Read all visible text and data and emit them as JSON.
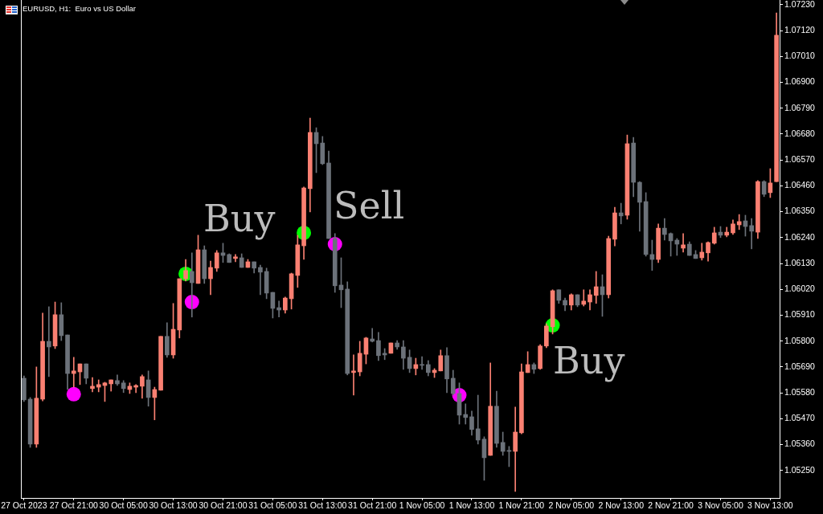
{
  "chart_data": {
    "type": "candlestick",
    "title": "EURUSD, H1:  Euro vs US Dollar",
    "categories": [
      "27 Oct 2023",
      null,
      null,
      null,
      null,
      null,
      null,
      null,
      "27 Oct 21:00",
      null,
      null,
      null,
      null,
      null,
      null,
      null,
      "30 Oct 05:00",
      null,
      null,
      null,
      null,
      null,
      null,
      null,
      "30 Oct 13:00",
      null,
      null,
      null,
      null,
      null,
      null,
      null,
      "30 Oct 21:00",
      null,
      null,
      null,
      null,
      null,
      null,
      null,
      "31 Oct 05:00",
      null,
      null,
      null,
      null,
      null,
      null,
      null,
      "31 Oct 13:00",
      null,
      null,
      null,
      null,
      null,
      null,
      null,
      "31 Oct 21:00",
      null,
      null,
      null,
      null,
      null,
      null,
      null,
      "1 Nov 05:00",
      null,
      null,
      null,
      null,
      null,
      null,
      null,
      "1 Nov 13:00",
      null,
      null,
      null,
      null,
      null,
      null,
      null,
      "1 Nov 21:00",
      null,
      null,
      null,
      null,
      null,
      null,
      null,
      "2 Nov 05:00",
      null,
      null,
      null,
      null,
      null,
      null,
      null,
      "2 Nov 13:00",
      null,
      null,
      null,
      null,
      null,
      null,
      null,
      "2 Nov 21:00",
      null,
      null,
      null,
      null,
      null,
      null,
      null,
      "3 Nov 05:00",
      null,
      null,
      null,
      null,
      null,
      null,
      null,
      "3 Nov 13:00",
      null
    ],
    "ohlc": [
      [
        1.05642,
        1.05652,
        1.05543,
        1.0555
      ],
      [
        1.05553,
        1.0556,
        1.05348,
        1.05362
      ],
      [
        1.05362,
        1.0569,
        1.05348,
        1.05557
      ],
      [
        1.05553,
        1.05919,
        1.05546,
        1.05799
      ],
      [
        1.05799,
        1.05946,
        1.05649,
        1.05775
      ],
      [
        1.05779,
        1.05966,
        1.05768,
        1.05912
      ],
      [
        1.05912,
        1.05963,
        1.05802,
        1.05823
      ],
      [
        1.05826,
        1.05826,
        1.05594,
        1.05662
      ],
      [
        1.05662,
        1.05731,
        1.05604,
        1.05673
      ],
      [
        1.05669,
        1.05703,
        1.05615,
        1.05703
      ],
      [
        1.05703,
        1.05703,
        1.05618,
        1.05642
      ],
      [
        1.05598,
        1.05645,
        1.05584,
        1.05608
      ],
      [
        1.05604,
        1.05635,
        1.05584,
        1.05615
      ],
      [
        1.05611,
        1.05625,
        1.05543,
        1.05622
      ],
      [
        1.05618,
        1.05635,
        1.05587,
        1.05635
      ],
      [
        1.05632,
        1.05656,
        1.05611,
        1.05618
      ],
      [
        1.05622,
        1.05632,
        1.05581,
        1.05598
      ],
      [
        1.05594,
        1.05622,
        1.05577,
        1.05608
      ],
      [
        1.05604,
        1.05615,
        1.05581,
        1.05611
      ],
      [
        1.05608,
        1.05656,
        1.05557,
        1.05649
      ],
      [
        1.05635,
        1.05673,
        1.05523,
        1.0556
      ],
      [
        1.0556,
        1.05604,
        1.05465,
        1.05594
      ],
      [
        1.05591,
        1.0582,
        1.05591,
        1.0582
      ],
      [
        1.0582,
        1.05878,
        1.05731,
        1.05741
      ],
      [
        1.05741,
        1.0596,
        1.05727,
        1.0585
      ],
      [
        1.05847,
        1.06065,
        1.05813,
        1.06065
      ],
      [
        1.06065,
        1.06147,
        1.06055,
        1.061
      ],
      [
        1.06096,
        1.06175,
        1.05902,
        1.06048
      ],
      [
        1.06045,
        1.0625,
        1.06045,
        1.06188
      ],
      [
        1.06188,
        1.06205,
        1.06045,
        1.06065
      ],
      [
        1.06065,
        1.0614,
        1.05997,
        1.06113
      ],
      [
        1.0611,
        1.06185,
        1.06096,
        1.06175
      ],
      [
        1.06175,
        1.06216,
        1.06134,
        1.06164
      ],
      [
        1.06168,
        1.06171,
        1.06134,
        1.06134
      ],
      [
        1.06151,
        1.06168,
        1.06137,
        1.06158
      ],
      [
        1.06154,
        1.06171,
        1.06113,
        1.06113
      ],
      [
        1.06113,
        1.06147,
        1.06113,
        1.06137
      ],
      [
        1.06137,
        1.06137,
        1.06089,
        1.0611
      ],
      [
        1.06113,
        1.06123,
        1.05997,
        1.06093
      ],
      [
        1.06096,
        1.0611,
        1.0598,
        1.06004
      ],
      [
        1.06007,
        1.06007,
        1.05898,
        1.05939
      ],
      [
        1.05942,
        1.0597,
        1.05902,
        1.05932
      ],
      [
        1.05932,
        1.05987,
        1.05919,
        1.05983
      ],
      [
        1.0598,
        1.06089,
        1.05936,
        1.06086
      ],
      [
        1.06079,
        1.0625,
        1.06028,
        1.06209
      ],
      [
        1.06205,
        1.06455,
        1.06147,
        1.06451
      ],
      [
        1.06448,
        1.06748,
        1.06349,
        1.06687
      ],
      [
        1.06687,
        1.06707,
        1.06516,
        1.06639
      ],
      [
        1.06642,
        1.0667,
        1.0655,
        1.06554
      ],
      [
        1.06557,
        1.06608,
        1.06236,
        1.06236
      ],
      [
        1.06236,
        1.06257,
        1.06007,
        1.06035
      ],
      [
        1.06038,
        1.06154,
        1.05942,
        1.06018
      ],
      [
        1.06021,
        1.06052,
        1.05656,
        1.05662
      ],
      [
        1.05666,
        1.05741,
        1.0557,
        1.05673
      ],
      [
        1.05669,
        1.05799,
        1.05652,
        1.05748
      ],
      [
        1.05744,
        1.05816,
        1.05703,
        1.05813
      ],
      [
        1.05809,
        1.05854,
        1.05796,
        1.05799
      ],
      [
        1.05802,
        1.05837,
        1.05717,
        1.05738
      ],
      [
        1.05748,
        1.05768,
        1.05721,
        1.05741
      ],
      [
        1.05748,
        1.05792,
        1.05748,
        1.05792
      ],
      [
        1.05792,
        1.05802,
        1.05765,
        1.05775
      ],
      [
        1.05775,
        1.05802,
        1.0568,
        1.05727
      ],
      [
        1.05731,
        1.05762,
        1.05666,
        1.05683
      ],
      [
        1.05683,
        1.05727,
        1.05656,
        1.057
      ],
      [
        1.057,
        1.05734,
        1.0568,
        1.05697
      ],
      [
        1.057,
        1.05717,
        1.05652,
        1.05666
      ],
      [
        1.05666,
        1.05683,
        1.05645,
        1.05676
      ],
      [
        1.05673,
        1.05762,
        1.05673,
        1.05738
      ],
      [
        1.05738,
        1.05772,
        1.05581,
        1.05639
      ],
      [
        1.05642,
        1.05676,
        1.0557,
        1.05577
      ],
      [
        1.05577,
        1.05622,
        1.05447,
        1.05485
      ],
      [
        1.05488,
        1.05533,
        1.05447,
        1.05475
      ],
      [
        1.05478,
        1.05502,
        1.054,
        1.05424
      ],
      [
        1.05427,
        1.0557,
        1.05362,
        1.05379
      ],
      [
        1.05383,
        1.05393,
        1.05208,
        1.05304
      ],
      [
        1.05314,
        1.05707,
        1.05314,
        1.05523
      ],
      [
        1.05523,
        1.05587,
        1.05348,
        1.05365
      ],
      [
        1.05369,
        1.05413,
        1.05314,
        1.05331
      ],
      [
        1.05335,
        1.05352,
        1.05266,
        1.05331
      ],
      [
        1.05331,
        1.05519,
        1.05161,
        1.05413
      ],
      [
        1.0541,
        1.05703,
        1.05406,
        1.05669
      ],
      [
        1.05666,
        1.05755,
        1.05666,
        1.057
      ],
      [
        1.057,
        1.05707,
        1.05662,
        1.0568
      ],
      [
        1.05683,
        1.05785,
        1.0568,
        1.05779
      ],
      [
        1.05779,
        1.05874,
        1.05772,
        1.05864
      ],
      [
        1.05861,
        1.06018,
        1.0583,
        1.06014
      ],
      [
        1.06018,
        1.06018,
        1.0596,
        1.05973
      ],
      [
        1.05973,
        1.05983,
        1.05929,
        1.05953
      ],
      [
        1.05953,
        1.06001,
        1.05932,
        1.05997
      ],
      [
        1.05997,
        1.05997,
        1.05946,
        1.05953
      ],
      [
        1.05956,
        1.06018,
        1.05949,
        1.0597
      ],
      [
        1.05966,
        1.06018,
        1.05932,
        1.05997
      ],
      [
        1.05994,
        1.06096,
        1.0596,
        1.06031
      ],
      [
        1.06031,
        1.06082,
        1.05905,
        1.05997
      ],
      [
        1.05997,
        1.06246,
        1.05983,
        1.06236
      ],
      [
        1.06233,
        1.06369,
        1.06205,
        1.06345
      ],
      [
        1.06345,
        1.06386,
        1.06298,
        1.06332
      ],
      [
        1.06335,
        1.06676,
        1.06318,
        1.06639
      ],
      [
        1.06642,
        1.06666,
        1.06414,
        1.06475
      ],
      [
        1.06475,
        1.06478,
        1.06267,
        1.0639
      ],
      [
        1.06393,
        1.06431,
        1.06161,
        1.06168
      ],
      [
        1.06168,
        1.06229,
        1.061,
        1.06147
      ],
      [
        1.06147,
        1.06298,
        1.06134,
        1.0628
      ],
      [
        1.0628,
        1.06321,
        1.06229,
        1.06253
      ],
      [
        1.06257,
        1.0626,
        1.06161,
        1.06226
      ],
      [
        1.06229,
        1.06236,
        1.06164,
        1.06212
      ],
      [
        1.06195,
        1.06257,
        1.06178,
        1.06209
      ],
      [
        1.06212,
        1.06222,
        1.06164,
        1.06164
      ],
      [
        1.06168,
        1.06185,
        1.06151,
        1.06151
      ],
      [
        1.06154,
        1.06216,
        1.06144,
        1.06178
      ],
      [
        1.06175,
        1.06222,
        1.0614,
        1.06219
      ],
      [
        1.06216,
        1.06284,
        1.06212,
        1.0626
      ],
      [
        1.06263,
        1.06287,
        1.0624,
        1.0625
      ],
      [
        1.0625,
        1.06284,
        1.06243,
        1.06263
      ],
      [
        1.0626,
        1.06315,
        1.06253,
        1.06298
      ],
      [
        1.06294,
        1.06338,
        1.06274,
        1.06308
      ],
      [
        1.06311,
        1.06335,
        1.06246,
        1.06287
      ],
      [
        1.06291,
        1.06321,
        1.06192,
        1.06267
      ],
      [
        1.06263,
        1.06482,
        1.06236,
        1.06478
      ],
      [
        1.06478,
        1.06482,
        1.06414,
        1.06424
      ],
      [
        1.06431,
        1.06533,
        1.0641,
        1.06472
      ],
      [
        1.06478,
        1.07195,
        1.06478,
        1.071
      ]
    ],
    "colors": [
      "#6c727a",
      "#6c727a",
      "#fa8072",
      "#fa8072",
      "#6c727a",
      "#fa8072",
      "#6c727a",
      "#6c727a",
      "#fa8072",
      "#fa8072",
      "#6c727a",
      "#fa8072",
      "#fa8072",
      "#fa8072",
      "#fa8072",
      "#6c727a",
      "#6c727a",
      "#fa8072",
      "#fa8072",
      "#fa8072",
      "#6c727a",
      "#fa8072",
      "#fa8072",
      "#6c727a",
      "#fa8072",
      "#fa8072",
      "#fa8072",
      "#6c727a",
      "#fa8072",
      "#6c727a",
      "#fa8072",
      "#fa8072",
      "#6c727a",
      "#6c727a",
      "#fa8072",
      "#6c727a",
      "#fa8072",
      "#6c727a",
      "#6c727a",
      "#6c727a",
      "#6c727a",
      "#6c727a",
      "#fa8072",
      "#fa8072",
      "#fa8072",
      "#fa8072",
      "#fa8072",
      "#6c727a",
      "#6c727a",
      "#6c727a",
      "#6c727a",
      "#6c727a",
      "#6c727a",
      "#fa8072",
      "#fa8072",
      "#fa8072",
      "#6c727a",
      "#6c727a",
      "#6c727a",
      "#fa8072",
      "#6c727a",
      "#6c727a",
      "#6c727a",
      "#fa8072",
      "#6c727a",
      "#6c727a",
      "#fa8072",
      "#fa8072",
      "#6c727a",
      "#6c727a",
      "#6c727a",
      "#6c727a",
      "#6c727a",
      "#6c727a",
      "#6c727a",
      "#fa8072",
      "#6c727a",
      "#6c727a",
      "#6c727a",
      "#fa8072",
      "#fa8072",
      "#fa8072",
      "#6c727a",
      "#fa8072",
      "#fa8072",
      "#fa8072",
      "#6c727a",
      "#6c727a",
      "#fa8072",
      "#6c727a",
      "#fa8072",
      "#fa8072",
      "#fa8072",
      "#6c727a",
      "#fa8072",
      "#fa8072",
      "#6c727a",
      "#fa8072",
      "#6c727a",
      "#6c727a",
      "#6c727a",
      "#6c727a",
      "#fa8072",
      "#6c727a",
      "#6c727a",
      "#6c727a",
      "#fa8072",
      "#6c727a",
      "#6c727a",
      "#fa8072",
      "#fa8072",
      "#fa8072",
      "#6c727a",
      "#fa8072",
      "#fa8072",
      "#fa8072",
      "#6c727a",
      "#6c727a",
      "#fa8072",
      "#6c727a",
      "#fa8072",
      "#fa8072"
    ],
    "series": [
      {
        "type": "scatter",
        "color": "#00ff00",
        "values": [
          null,
          null,
          null,
          null,
          null,
          null,
          null,
          null,
          null,
          null,
          null,
          null,
          null,
          null,
          null,
          null,
          null,
          null,
          null,
          null,
          null,
          null,
          null,
          null,
          null,
          null,
          1.06086,
          null,
          null,
          null,
          null,
          null,
          null,
          null,
          null,
          null,
          null,
          null,
          null,
          null,
          null,
          null,
          null,
          null,
          null,
          1.0626,
          null,
          null,
          null,
          null,
          null,
          null,
          null,
          null,
          null,
          null,
          null,
          null,
          null,
          null,
          null,
          null,
          null,
          null,
          null,
          null,
          null,
          null,
          null,
          null,
          null,
          null,
          null,
          null,
          null,
          null,
          null,
          null,
          null,
          null,
          null,
          null,
          null,
          null,
          null,
          1.05867,
          null,
          null,
          null,
          null,
          null,
          null,
          null,
          null,
          null,
          null,
          null,
          null,
          null,
          null,
          null,
          null,
          null,
          null,
          null,
          null,
          null,
          null,
          null,
          null,
          null,
          null,
          null,
          null,
          null,
          null,
          null,
          null,
          null,
          null,
          null,
          null
        ]
      },
      {
        "type": "scatter",
        "color": "#ff00ff",
        "values": [
          null,
          null,
          null,
          null,
          null,
          null,
          null,
          null,
          1.05574,
          null,
          null,
          null,
          null,
          null,
          null,
          null,
          null,
          null,
          null,
          null,
          null,
          null,
          null,
          null,
          null,
          null,
          null,
          1.05966,
          null,
          null,
          null,
          null,
          null,
          null,
          null,
          null,
          null,
          null,
          null,
          null,
          null,
          null,
          null,
          null,
          null,
          null,
          null,
          null,
          null,
          null,
          1.06212,
          null,
          null,
          null,
          null,
          null,
          null,
          null,
          null,
          null,
          null,
          null,
          null,
          null,
          null,
          null,
          null,
          null,
          null,
          null,
          1.0557,
          null,
          null,
          null,
          null,
          null,
          null,
          null,
          null,
          null,
          null,
          null,
          null,
          null,
          null,
          null,
          null,
          null,
          null,
          null,
          null,
          null,
          null,
          null,
          null,
          null,
          null,
          null,
          null,
          null,
          null,
          null,
          null,
          null,
          null,
          null,
          null,
          null,
          null,
          null,
          null,
          null,
          null,
          null,
          null,
          null,
          null,
          null,
          null,
          null,
          null,
          null
        ]
      }
    ],
    "marker": "circle",
    "ylim": [
      1.05133,
      1.0725
    ],
    "yticks": [
      {
        "value": 1.0525,
        "label": "1.05250"
      },
      {
        "value": 1.0536,
        "label": "1.05360"
      },
      {
        "value": 1.0547,
        "label": "1.05470"
      },
      {
        "value": 1.0558,
        "label": "1.05580"
      },
      {
        "value": 1.0569,
        "label": "1.05690"
      },
      {
        "value": 1.058,
        "label": "1.05800"
      },
      {
        "value": 1.0591,
        "label": "1.05910"
      },
      {
        "value": 1.0602,
        "label": "1.06020"
      },
      {
        "value": 1.0613,
        "label": "1.06130"
      },
      {
        "value": 1.0624,
        "label": "1.06240"
      },
      {
        "value": 1.0635,
        "label": "1.06350"
      },
      {
        "value": 1.0646,
        "label": "1.06460"
      },
      {
        "value": 1.0657,
        "label": "1.06570"
      },
      {
        "value": 1.0668,
        "label": "1.06680"
      },
      {
        "value": 1.0679,
        "label": "1.06790"
      },
      {
        "value": 1.069,
        "label": "1.06900"
      },
      {
        "value": 1.0701,
        "label": "1.07010"
      },
      {
        "value": 1.0712,
        "label": "1.07120"
      },
      {
        "value": 1.0723,
        "label": "1.07230"
      }
    ],
    "annotations": [
      "Buy",
      "Sell",
      "Buy"
    ]
  }
}
